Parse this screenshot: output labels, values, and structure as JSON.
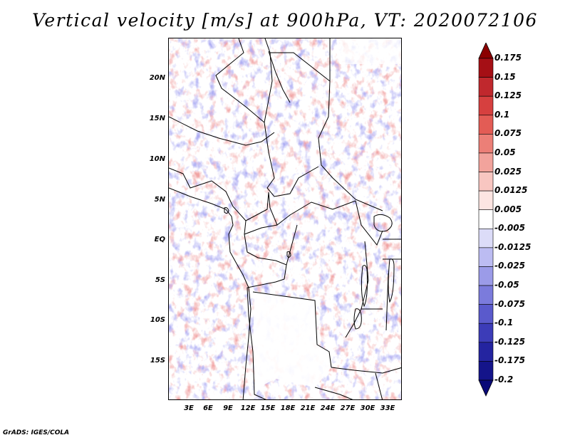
{
  "title": "Vertical velocity [m/s] at 900hPa, VT: 2020072106",
  "map": {
    "lat_labels": [
      "20N",
      "15N",
      "10N",
      "5N",
      "EQ",
      "5S",
      "10S",
      "15S"
    ],
    "lon_labels": [
      "3E",
      "6E",
      "9E",
      "12E",
      "15E",
      "18E",
      "21E",
      "24E",
      "27E",
      "30E",
      "33E"
    ]
  },
  "colorbar": {
    "labels": [
      "0.175",
      "0.15",
      "0.125",
      "0.1",
      "0.075",
      "0.05",
      "0.025",
      "0.0125",
      "0.005",
      "-0.005",
      "-0.0125",
      "-0.025",
      "-0.05",
      "-0.075",
      "-0.1",
      "-0.125",
      "-0.175",
      "-0.2"
    ],
    "colors": [
      "#8b0000",
      "#a50f15",
      "#c0282d",
      "#d6403f",
      "#e35c55",
      "#ec7f77",
      "#f2a39c",
      "#f8c6c1",
      "#fde5e2",
      "#ffffff",
      "#dcdcf8",
      "#bcbcf2",
      "#9b9be8",
      "#7b7bdc",
      "#5a5acc",
      "#3c3cb8",
      "#2424a0",
      "#14148a",
      "#0a0a78"
    ]
  },
  "credit": "GrADS: IGES/COLA",
  "colors": {
    "positive": "#e34a4a",
    "negative": "#4a4ae0",
    "border": "#000000"
  }
}
